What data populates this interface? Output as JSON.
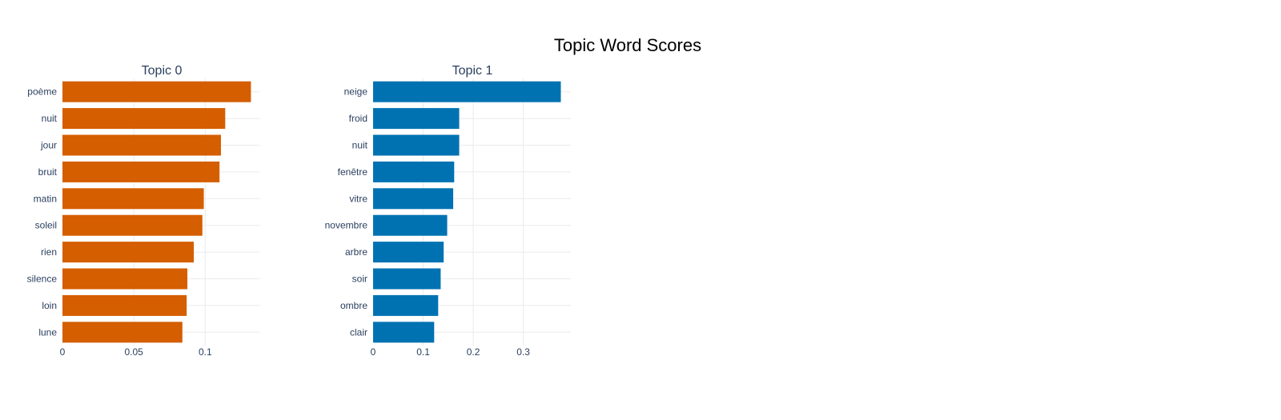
{
  "chart_data": {
    "title": "Topic Word Scores",
    "panels": [
      {
        "type": "bar",
        "orientation": "horizontal",
        "title": "Topic 0",
        "color": "#d55e00",
        "categories": [
          "poème",
          "nuit",
          "jour",
          "bruit",
          "matin",
          "soleil",
          "rien",
          "silence",
          "loin",
          "lune"
        ],
        "values": [
          0.132,
          0.114,
          0.111,
          0.11,
          0.099,
          0.098,
          0.092,
          0.0875,
          0.087,
          0.084
        ],
        "xticks": [
          0,
          0.05,
          0.1
        ],
        "xtick_labels": [
          "0",
          "0.05",
          "0.1"
        ],
        "xlim": [
          0,
          0.1385
        ]
      },
      {
        "type": "bar",
        "orientation": "horizontal",
        "title": "Topic 1",
        "color": "#0072b2",
        "categories": [
          "neige",
          "froid",
          "nuit",
          "fenêtre",
          "vitre",
          "novembre",
          "arbre",
          "soir",
          "ombre",
          "clair"
        ],
        "values": [
          0.375,
          0.172,
          0.172,
          0.162,
          0.16,
          0.148,
          0.141,
          0.135,
          0.13,
          0.122
        ],
        "xticks": [
          0,
          0.1,
          0.2,
          0.3
        ],
        "xtick_labels": [
          "0",
          "0.1",
          "0.2",
          "0.3"
        ],
        "xlim": [
          0,
          0.395
        ]
      }
    ]
  }
}
